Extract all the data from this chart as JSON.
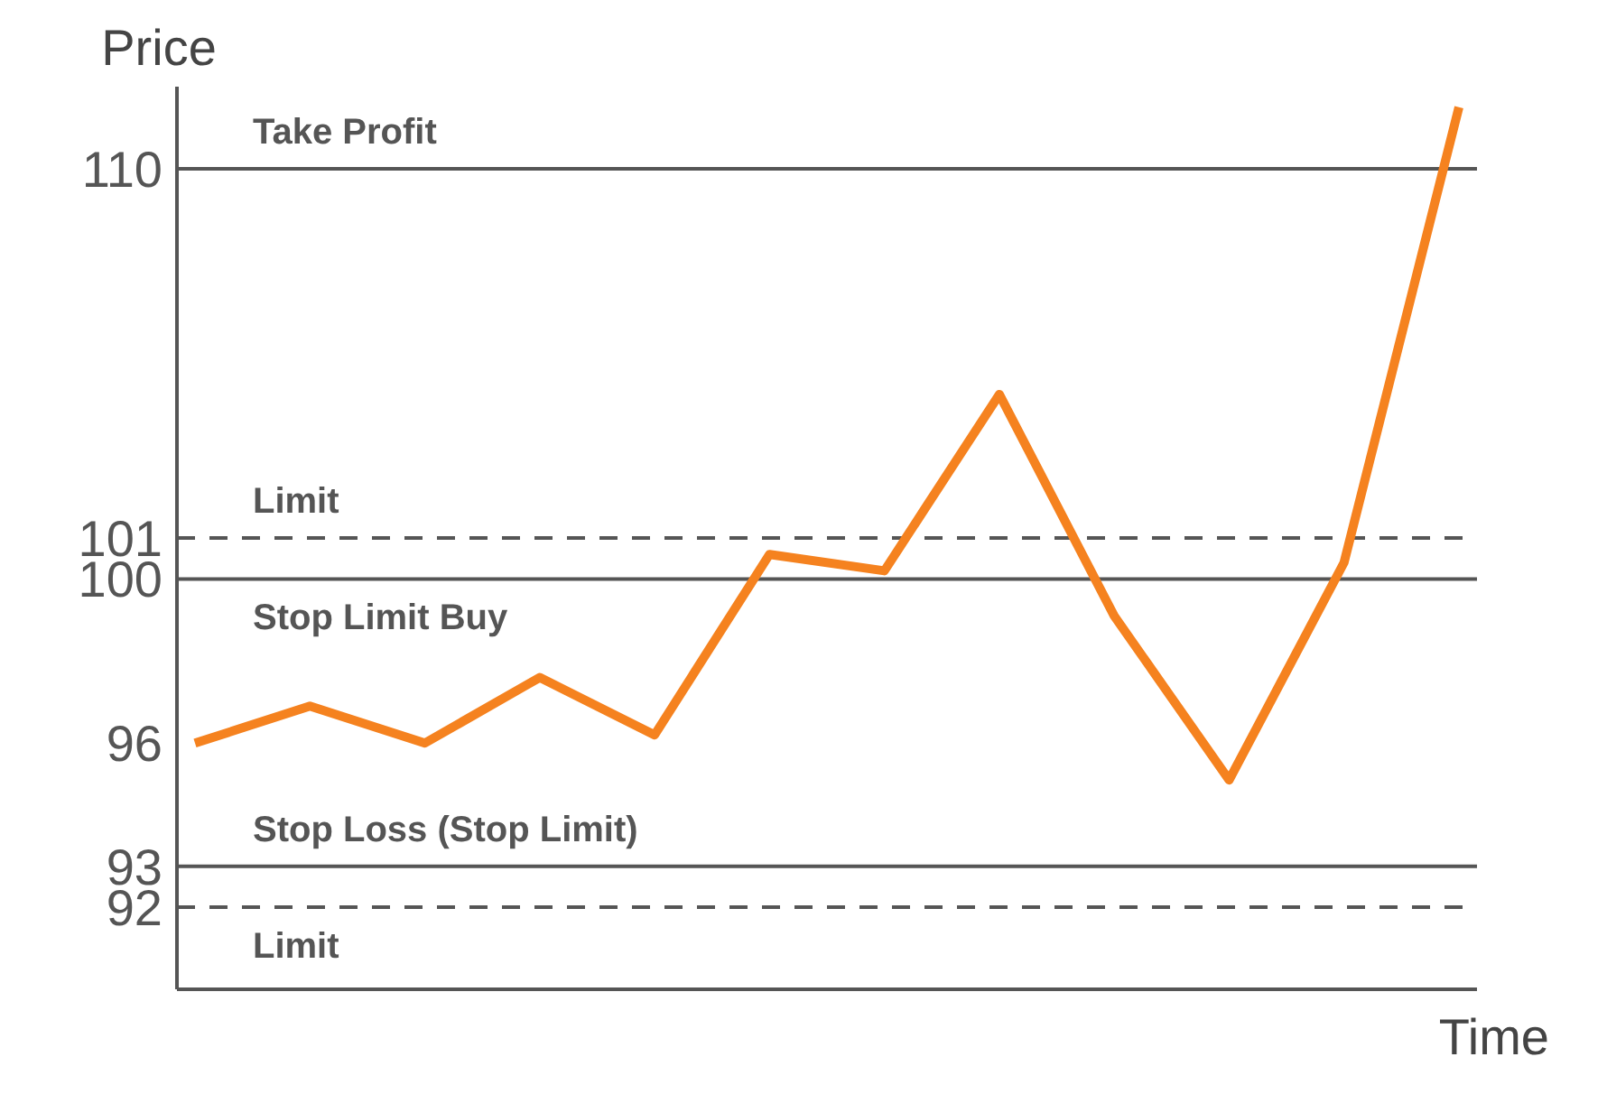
{
  "chart_data": {
    "type": "line",
    "xlabel": "Time",
    "ylabel": "Price",
    "categories": [
      null,
      null,
      null,
      null,
      null,
      null,
      null,
      null,
      null,
      null,
      null,
      null
    ],
    "series": [
      {
        "color": "#f5821f",
        "values": [
          96,
          96.9,
          96,
          97.6,
          96.2,
          100.6,
          100.2,
          104.5,
          99.1,
          95.1,
          100.4,
          111.5
        ]
      }
    ],
    "ylim": [
      90,
      112
    ],
    "yticks": [
      92,
      93,
      96,
      100,
      101,
      110
    ],
    "ref_lines": [
      {
        "axis": "y",
        "value": 110,
        "label": "Take Profit",
        "color": "#555555",
        "line_style": "solid"
      },
      {
        "axis": "y",
        "value": 101,
        "label": "Limit",
        "color": "#555555",
        "line_style": "dashed"
      },
      {
        "axis": "y",
        "value": 100,
        "label": "Stop Limit Buy",
        "color": "#555555",
        "line_style": "solid"
      },
      {
        "axis": "y",
        "value": 93,
        "label": "Stop Loss (Stop Limit)",
        "color": "#555555",
        "line_style": "solid"
      },
      {
        "axis": "y",
        "value": 92,
        "label": "Limit",
        "color": "#555555",
        "line_style": "dashed"
      }
    ],
    "grid": false,
    "legend": false,
    "marker": "none",
    "line_style": "solid"
  }
}
